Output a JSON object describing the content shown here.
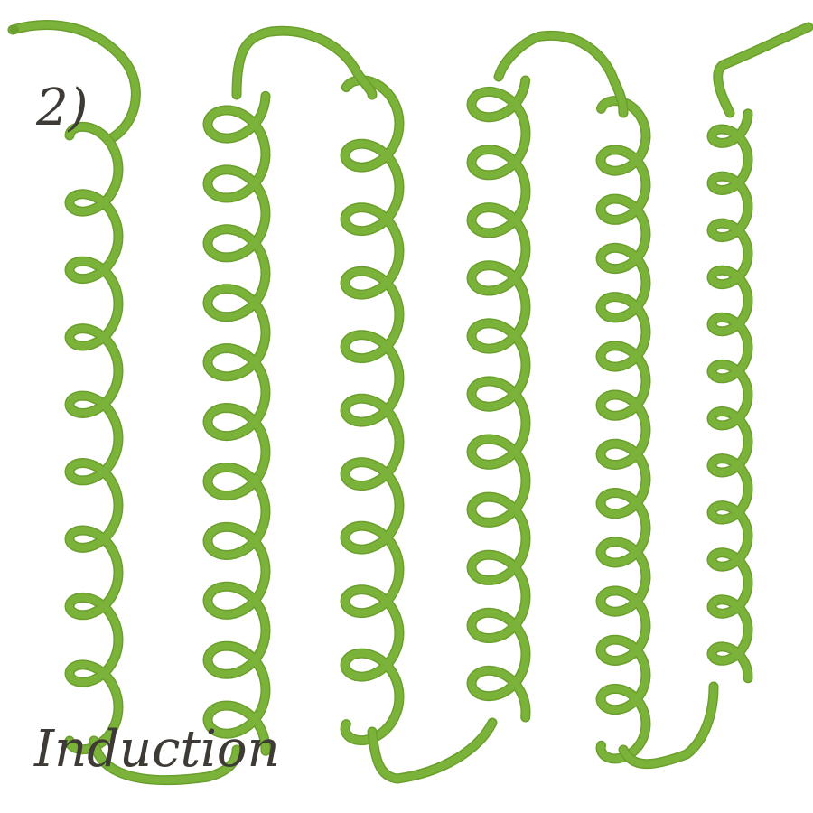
{
  "drawing": {
    "number_label": "2)",
    "caption": "Induction",
    "colors": {
      "paper": "#ffffff",
      "ink": "#3e3a36",
      "vine_stroke": "#7bb33a",
      "vine_shadow": "#6a9f2c"
    }
  }
}
